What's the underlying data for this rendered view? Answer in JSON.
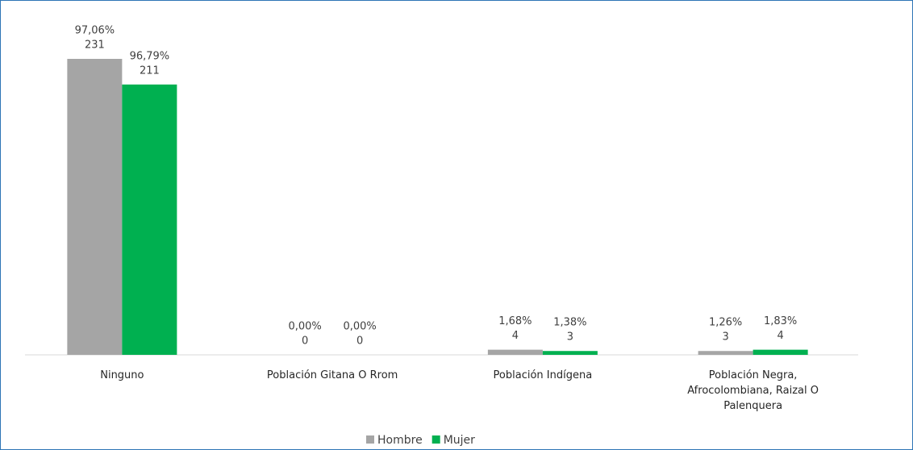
{
  "chart_data": {
    "type": "bar",
    "categories": [
      "Ninguno",
      "Población Gitana O Rrom",
      "Población Indígena",
      "Población Negra,\nAfrocolombiana, Raizal O\nPalenquera"
    ],
    "series": [
      {
        "name": "Hombre",
        "color": "#a5a5a5",
        "values": [
          231,
          0,
          4,
          3
        ],
        "percent_labels": [
          "97,06%",
          "0,00%",
          "1,68%",
          "1,26%"
        ]
      },
      {
        "name": "Mujer",
        "color": "#00b050",
        "values": [
          211,
          0,
          3,
          4
        ],
        "percent_labels": [
          "96,79%",
          "0,00%",
          "1,38%",
          "1,83%"
        ]
      }
    ],
    "legend": "bottom"
  }
}
